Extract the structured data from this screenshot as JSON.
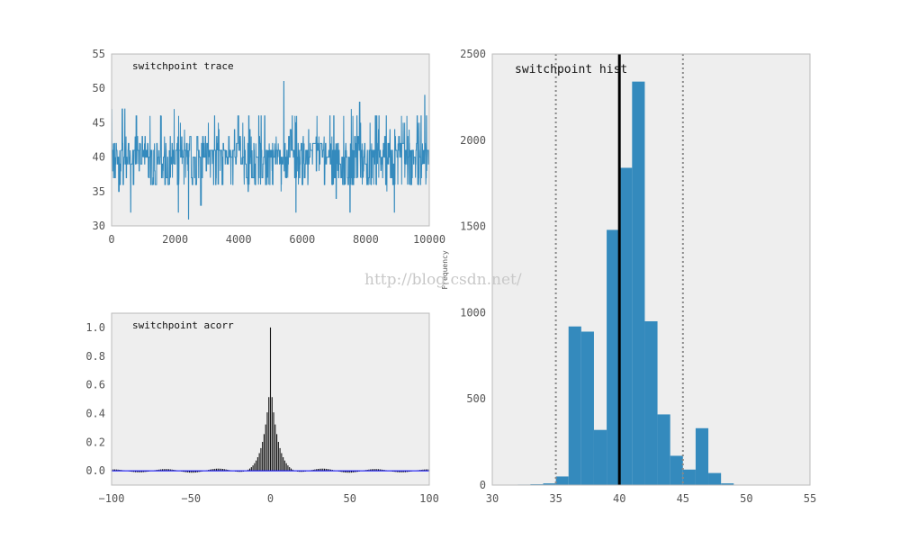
{
  "colors": {
    "panel_bg": "#eeeeee",
    "panel_border": "#bbbbbb",
    "series": "#348abd",
    "acorr_bar": "#111111",
    "acorr_baseline": "#0000ff",
    "mean_line": "#000000",
    "hpd_line": "#888888"
  },
  "watermark": "http://blog.csdn.net/",
  "chart_data": [
    {
      "id": "trace",
      "type": "line",
      "title": "switchpoint trace",
      "xlabel": "",
      "ylabel": "",
      "xlim": [
        0,
        10000
      ],
      "ylim": [
        30,
        55
      ],
      "xticks": [
        "0",
        "2000",
        "4000",
        "6000",
        "8000",
        "10000"
      ],
      "yticks": [
        "30",
        "35",
        "40",
        "45",
        "50",
        "55"
      ],
      "grid": false,
      "n_samples": 10000,
      "value_probabilities": {
        "values": [
          32,
          33,
          34,
          35,
          36,
          37,
          38,
          39,
          40,
          41,
          42,
          43,
          44,
          45,
          46,
          47,
          48,
          49
        ],
        "weights": [
          3,
          5,
          10,
          50,
          920,
          890,
          320,
          1480,
          1840,
          2340,
          950,
          410,
          170,
          90,
          330,
          70,
          10,
          5
        ]
      },
      "notable_points": [
        {
          "x": 2420,
          "y": 31
        },
        {
          "x": 5420,
          "y": 51
        },
        {
          "x": 2100,
          "y": 32
        },
        {
          "x": 600,
          "y": 32
        },
        {
          "x": 8900,
          "y": 32
        },
        {
          "x": 5800,
          "y": 32
        }
      ]
    },
    {
      "id": "acorr",
      "type": "bar",
      "title": "switchpoint acorr",
      "xlabel": "",
      "ylabel": "",
      "xlim": [
        -100,
        100
      ],
      "ylim": [
        -0.1,
        1.1
      ],
      "xticks": [
        "−100",
        "−50",
        "0",
        "50",
        "100"
      ],
      "yticks": [
        "0.0",
        "0.2",
        "0.4",
        "0.6",
        "0.8",
        "1.0"
      ],
      "lags": [
        -100,
        100
      ],
      "peak": 1.0,
      "grid": false
    },
    {
      "id": "hist",
      "type": "bar",
      "title": "switchpoint hist",
      "xlabel": "",
      "ylabel": "Frequency",
      "xlim": [
        30,
        55
      ],
      "ylim": [
        0,
        2500
      ],
      "xticks": [
        "30",
        "35",
        "40",
        "45",
        "50",
        "55"
      ],
      "yticks": [
        "0",
        "500",
        "1000",
        "1500",
        "2000",
        "2500"
      ],
      "bins": [
        {
          "from": 32,
          "to": 33,
          "count": 3
        },
        {
          "from": 33,
          "to": 34,
          "count": 5
        },
        {
          "from": 34,
          "to": 35,
          "count": 10
        },
        {
          "from": 35,
          "to": 36,
          "count": 50
        },
        {
          "from": 36,
          "to": 37,
          "count": 920
        },
        {
          "from": 37,
          "to": 38,
          "count": 890
        },
        {
          "from": 38,
          "to": 39,
          "count": 320
        },
        {
          "from": 39,
          "to": 40,
          "count": 1480
        },
        {
          "from": 40,
          "to": 41,
          "count": 1840
        },
        {
          "from": 41,
          "to": 42,
          "count": 2340
        },
        {
          "from": 42,
          "to": 43,
          "count": 950
        },
        {
          "from": 43,
          "to": 44,
          "count": 410
        },
        {
          "from": 44,
          "to": 45,
          "count": 170
        },
        {
          "from": 45,
          "to": 46,
          "count": 90
        },
        {
          "from": 46,
          "to": 47,
          "count": 330
        },
        {
          "from": 47,
          "to": 48,
          "count": 70
        },
        {
          "from": 48,
          "to": 49,
          "count": 10
        }
      ],
      "mean": 40.0,
      "hpd_95": [
        35.0,
        45.0
      ],
      "grid": false
    }
  ]
}
